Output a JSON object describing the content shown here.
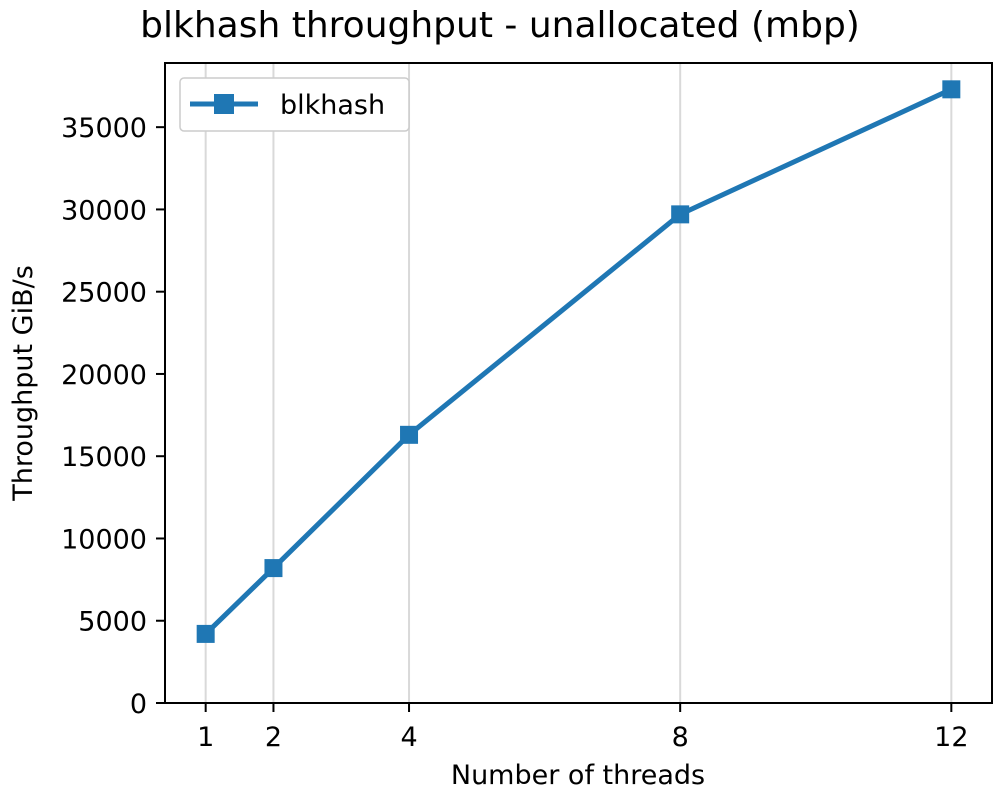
{
  "chart_data": {
    "type": "line",
    "title": "blkhash throughput - unallocated (mbp)",
    "xlabel": "Number of threads",
    "ylabel": "Throughput GiB/s",
    "x": [
      1,
      2,
      4,
      8,
      12
    ],
    "series": [
      {
        "name": "blkhash",
        "values": [
          4200,
          8200,
          16300,
          29700,
          37300
        ],
        "color": "#1f77b4",
        "marker": "square"
      }
    ],
    "xlim": [
      0.4,
      12.6
    ],
    "ylim": [
      0,
      38900
    ],
    "xticks": [
      1,
      2,
      4,
      8,
      12
    ],
    "yticks": [
      0,
      5000,
      10000,
      15000,
      20000,
      25000,
      30000,
      35000
    ],
    "grid": "vertical",
    "legend_position": "top-left"
  }
}
